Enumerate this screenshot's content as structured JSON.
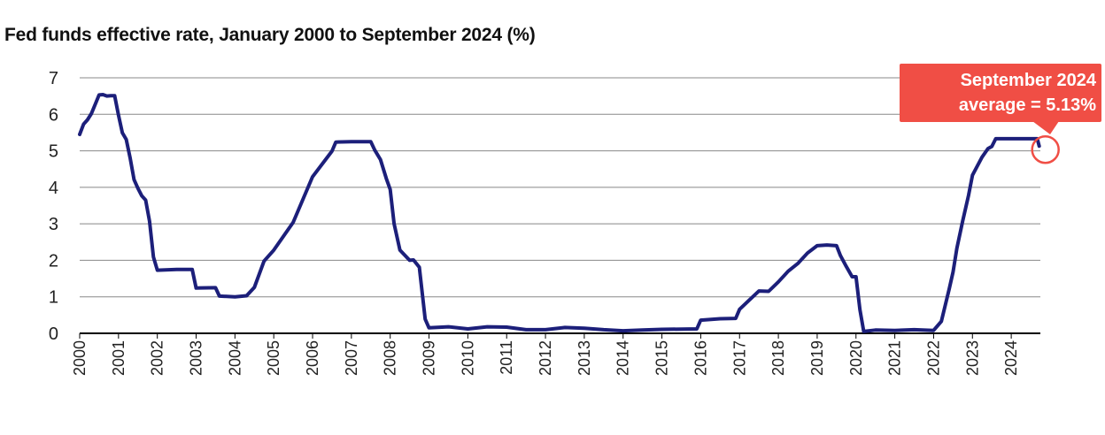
{
  "title": "Fed funds effective rate, January 2000 to September 2024 (%)",
  "callout": {
    "line1": "September 2024",
    "line2": "average = 5.13%",
    "color": "#f04e45"
  },
  "colors": {
    "line": "#1c1f7a",
    "grid": "#888888",
    "axis": "#000000"
  },
  "chart_data": {
    "type": "line",
    "title": "Fed funds effective rate, January 2000 to September 2024 (%)",
    "xlabel": "",
    "ylabel": "",
    "ylim": [
      0,
      7
    ],
    "xlim": [
      2000,
      2024.75
    ],
    "yticks": [
      "0",
      "1",
      "2",
      "3",
      "4",
      "5",
      "6",
      "7"
    ],
    "xticks": [
      "2000",
      "2001",
      "2002",
      "2003",
      "2004",
      "2005",
      "2006",
      "2007",
      "2008",
      "2009",
      "2010",
      "2011",
      "2012",
      "2013",
      "2014",
      "2015",
      "2016",
      "2017",
      "2018",
      "2019",
      "2020",
      "2021",
      "2022",
      "2023",
      "2024"
    ],
    "grid": "horizontal",
    "series": [
      {
        "x": [
          2000.0,
          2000.1,
          2000.2,
          2000.3,
          2000.4,
          2000.5,
          2000.6,
          2000.7,
          2000.8,
          2000.9,
          2001.0,
          2001.1,
          2001.2,
          2001.3,
          2001.4,
          2001.5,
          2001.6,
          2001.7,
          2001.8,
          2001.9,
          2002.0,
          2002.5,
          2002.9,
          2003.0,
          2003.5,
          2003.6,
          2004.0,
          2004.3,
          2004.5,
          2004.75,
          2005.0,
          2005.5,
          2006.0,
          2006.5,
          2006.6,
          2007.0,
          2007.5,
          2007.6,
          2007.75,
          2007.9,
          2008.0,
          2008.1,
          2008.25,
          2008.5,
          2008.6,
          2008.75,
          2008.9,
          2009.0,
          2009.5,
          2010.0,
          2010.5,
          2011.0,
          2011.5,
          2012.0,
          2012.5,
          2013.0,
          2013.5,
          2014.0,
          2014.5,
          2015.0,
          2015.9,
          2016.0,
          2016.5,
          2016.9,
          2017.0,
          2017.25,
          2017.5,
          2017.75,
          2018.0,
          2018.25,
          2018.5,
          2018.75,
          2019.0,
          2019.25,
          2019.5,
          2019.6,
          2019.75,
          2019.9,
          2020.0,
          2020.1,
          2020.2,
          2020.5,
          2021.0,
          2021.5,
          2022.0,
          2022.2,
          2022.3,
          2022.4,
          2022.5,
          2022.6,
          2022.75,
          2022.9,
          2023.0,
          2023.25,
          2023.4,
          2023.5,
          2023.6,
          2024.0,
          2024.5,
          2024.67,
          2024.72
        ],
        "y": [
          5.45,
          5.73,
          5.85,
          6.02,
          6.27,
          6.53,
          6.54,
          6.5,
          6.51,
          6.51,
          5.98,
          5.49,
          5.31,
          4.8,
          4.21,
          3.97,
          3.77,
          3.65,
          3.07,
          2.09,
          1.73,
          1.75,
          1.75,
          1.24,
          1.25,
          1.02,
          1.0,
          1.03,
          1.26,
          1.98,
          2.28,
          3.04,
          4.29,
          4.99,
          5.24,
          5.25,
          5.25,
          5.02,
          4.76,
          4.24,
          3.94,
          3.0,
          2.28,
          2.0,
          2.01,
          1.81,
          0.39,
          0.15,
          0.18,
          0.12,
          0.18,
          0.17,
          0.1,
          0.1,
          0.16,
          0.14,
          0.1,
          0.07,
          0.09,
          0.11,
          0.12,
          0.36,
          0.4,
          0.41,
          0.66,
          0.91,
          1.16,
          1.15,
          1.41,
          1.7,
          1.91,
          2.2,
          2.4,
          2.42,
          2.4,
          2.13,
          1.83,
          1.55,
          1.55,
          0.65,
          0.05,
          0.09,
          0.08,
          0.1,
          0.08,
          0.33,
          0.77,
          1.21,
          1.68,
          2.33,
          3.08,
          3.78,
          4.33,
          4.83,
          5.06,
          5.12,
          5.33,
          5.33,
          5.33,
          5.33,
          5.13
        ]
      }
    ]
  }
}
